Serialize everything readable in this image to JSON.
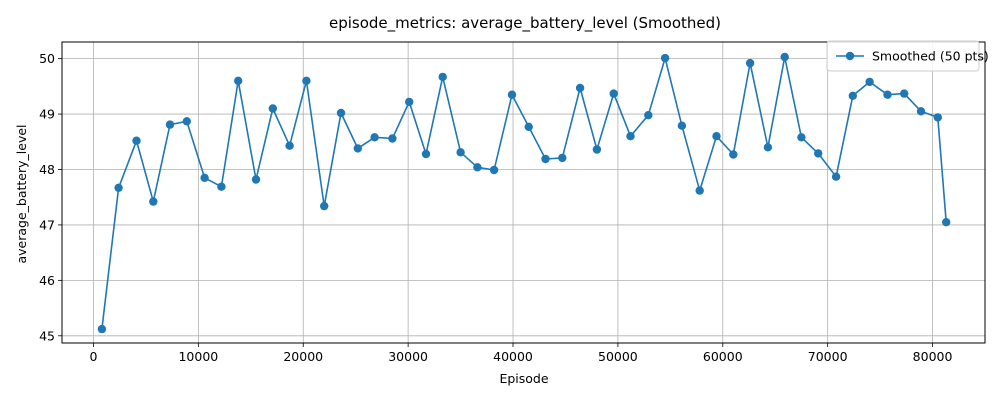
{
  "chart_data": {
    "type": "line",
    "title": "episode_metrics: average_battery_level (Smoothed)",
    "xlabel": "Episode",
    "ylabel": "average_battery_level",
    "xlim": [
      -3000,
      85000
    ],
    "ylim": [
      44.87,
      50.3
    ],
    "x_ticks": [
      0,
      10000,
      20000,
      30000,
      40000,
      50000,
      60000,
      70000,
      80000
    ],
    "x_tick_labels": [
      "0",
      "10000",
      "20000",
      "30000",
      "40000",
      "50000",
      "60000",
      "70000",
      "80000"
    ],
    "y_ticks": [
      45,
      46,
      47,
      48,
      49,
      50
    ],
    "y_tick_labels": [
      "45",
      "46",
      "47",
      "48",
      "49",
      "50"
    ],
    "grid": true,
    "legend_position": "top-right",
    "color": "#1f77b4",
    "series": [
      {
        "name": "Smoothed (50 pts)",
        "x": [
          800,
          2400,
          4100,
          5700,
          7300,
          8900,
          10600,
          12200,
          13800,
          15500,
          17100,
          18700,
          20300,
          22000,
          23600,
          25200,
          26800,
          28500,
          30100,
          31700,
          33300,
          35000,
          36600,
          38200,
          39900,
          41500,
          43100,
          44700,
          46400,
          48000,
          49600,
          51200,
          52900,
          54500,
          56100,
          57800,
          59400,
          61000,
          62600,
          64300,
          65900,
          67500,
          69100,
          70800,
          72400,
          74000,
          75700,
          77300,
          78900,
          80500,
          81300
        ],
        "y": [
          45.12,
          47.67,
          48.52,
          47.42,
          48.81,
          48.87,
          47.85,
          47.69,
          49.6,
          47.82,
          49.1,
          48.43,
          49.6,
          47.34,
          49.02,
          48.38,
          48.58,
          48.56,
          49.22,
          48.28,
          49.67,
          48.31,
          48.04,
          47.99,
          49.35,
          48.77,
          48.19,
          48.21,
          49.47,
          48.36,
          49.37,
          48.6,
          48.98,
          50.01,
          48.79,
          47.62,
          48.6,
          48.27,
          49.92,
          48.4,
          50.03,
          48.58,
          48.29,
          47.87,
          49.33,
          49.58,
          49.35,
          49.37,
          49.05,
          48.94,
          47.05
        ]
      }
    ]
  }
}
